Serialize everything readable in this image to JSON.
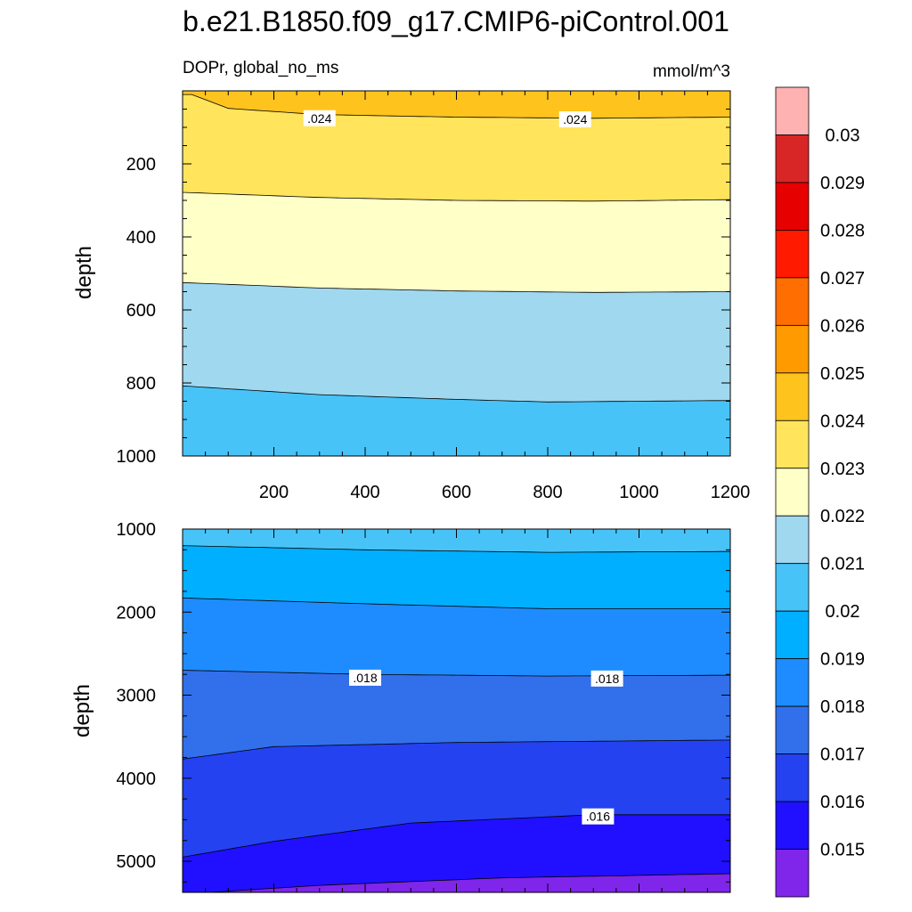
{
  "title": "b.e21.B1850.f09_g17.CMIP6-piControl.001",
  "chart_data": [
    {
      "type": "contour",
      "panel": "upper",
      "left_label": "DOPr, global_no_ms",
      "right_label": "mmol/m^3",
      "ylabel": "depth",
      "xlabel": "",
      "xlim": [
        0,
        1200
      ],
      "ylim": [
        1000,
        0
      ],
      "x_ticks": [
        200,
        400,
        600,
        800,
        1000,
        1200
      ],
      "y_ticks": [
        200,
        400,
        600,
        800,
        1000
      ],
      "contour_lines": [
        {
          "level": 0.024,
          "depth_at_x": [
            [
              20,
              10
            ],
            [
              100,
              48
            ],
            [
              300,
              65
            ],
            [
              600,
              72
            ],
            [
              900,
              75
            ],
            [
              1200,
              72
            ]
          ],
          "label": ".024",
          "label_positions": [
            [
              300,
              75
            ],
            [
              860,
              78
            ]
          ]
        },
        {
          "level": 0.023,
          "depth_at_x": [
            [
              0,
              278
            ],
            [
              300,
              292
            ],
            [
              600,
              300
            ],
            [
              900,
              302
            ],
            [
              1200,
              298
            ]
          ]
        },
        {
          "level": 0.022,
          "depth_at_x": [
            [
              0,
              525
            ],
            [
              300,
              540
            ],
            [
              600,
              548
            ],
            [
              900,
              552
            ],
            [
              1200,
              550
            ]
          ]
        },
        {
          "level": 0.021,
          "depth_at_x": [
            [
              0,
              808
            ],
            [
              300,
              832
            ],
            [
              600,
              845
            ],
            [
              800,
              852
            ],
            [
              1200,
              848
            ]
          ]
        }
      ],
      "bands": [
        {
          "range": [
            0.024,
            0.025
          ],
          "color": "#ffc31e"
        },
        {
          "range": [
            0.023,
            0.024
          ],
          "color": "#ffe45c"
        },
        {
          "range": [
            0.022,
            0.023
          ],
          "color": "#ffffc8"
        },
        {
          "range": [
            0.021,
            0.022
          ],
          "color": "#a0d8f0"
        },
        {
          "range": [
            0.02,
            0.021
          ],
          "color": "#48c3f8"
        }
      ]
    },
    {
      "type": "contour",
      "panel": "lower",
      "ylabel": "depth",
      "xlabel": "",
      "xlim": [
        0,
        1200
      ],
      "ylim": [
        5375,
        1000
      ],
      "x_ticks": [
        200,
        400,
        600,
        800,
        1000,
        1200
      ],
      "y_ticks": [
        1000,
        2000,
        3000,
        4000,
        5000
      ],
      "contour_lines": [
        {
          "level": 0.02,
          "depth_at_x": [
            [
              0,
              1200
            ],
            [
              400,
              1250
            ],
            [
              800,
              1280
            ],
            [
              1200,
              1270
            ]
          ]
        },
        {
          "level": 0.019,
          "depth_at_x": [
            [
              0,
              1830
            ],
            [
              400,
              1900
            ],
            [
              800,
              1960
            ],
            [
              1200,
              1960
            ]
          ]
        },
        {
          "level": 0.018,
          "depth_at_x": [
            [
              0,
              2700
            ],
            [
              400,
              2750
            ],
            [
              800,
              2770
            ],
            [
              1200,
              2760
            ]
          ],
          "label": ".018",
          "label_positions": [
            [
              400,
              2790
            ],
            [
              930,
              2800
            ]
          ]
        },
        {
          "level": 0.017,
          "depth_at_x": [
            [
              0,
              3770
            ],
            [
              200,
              3620
            ],
            [
              600,
              3570
            ],
            [
              1200,
              3540
            ]
          ]
        },
        {
          "level": 0.016,
          "depth_at_x": [
            [
              0,
              4950
            ],
            [
              200,
              4760
            ],
            [
              500,
              4540
            ],
            [
              900,
              4440
            ],
            [
              1200,
              4440
            ]
          ],
          "label": ".016",
          "label_positions": [
            [
              910,
              4460
            ]
          ]
        },
        {
          "level": 0.015,
          "depth_at_x": [
            [
              60,
              5375
            ],
            [
              300,
              5290
            ],
            [
              700,
              5200
            ],
            [
              1200,
              5150
            ]
          ]
        }
      ],
      "bands": [
        {
          "range": [
            0.02,
            0.021
          ],
          "color": "#48c3f8"
        },
        {
          "range": [
            0.019,
            0.02
          ],
          "color": "#00afff"
        },
        {
          "range": [
            0.018,
            0.019
          ],
          "color": "#1e8cff"
        },
        {
          "range": [
            0.017,
            0.018
          ],
          "color": "#3270eb"
        },
        {
          "range": [
            0.016,
            0.017
          ],
          "color": "#2442f0"
        },
        {
          "range": [
            0.015,
            0.016
          ],
          "color": "#2010ff"
        },
        {
          "range": [
            0.014,
            0.015
          ],
          "color": "#8025ea"
        }
      ]
    }
  ],
  "colorbar": {
    "labels": [
      "0.03",
      "0.029",
      "0.028",
      "0.027",
      "0.026",
      "0.025",
      "0.024",
      "0.023",
      "0.022",
      "0.021",
      "0.02",
      "0.019",
      "0.018",
      "0.017",
      "0.016",
      "0.015"
    ],
    "colors": [
      "#ffb2b2",
      "#d82626",
      "#e60000",
      "#ff1a00",
      "#ff6e00",
      "#ff9b00",
      "#ffc31e",
      "#ffe45c",
      "#ffffc8",
      "#a0d8f0",
      "#48c3f8",
      "#00afff",
      "#1e8cff",
      "#3270eb",
      "#2442f0",
      "#2010ff",
      "#8025ea"
    ]
  }
}
